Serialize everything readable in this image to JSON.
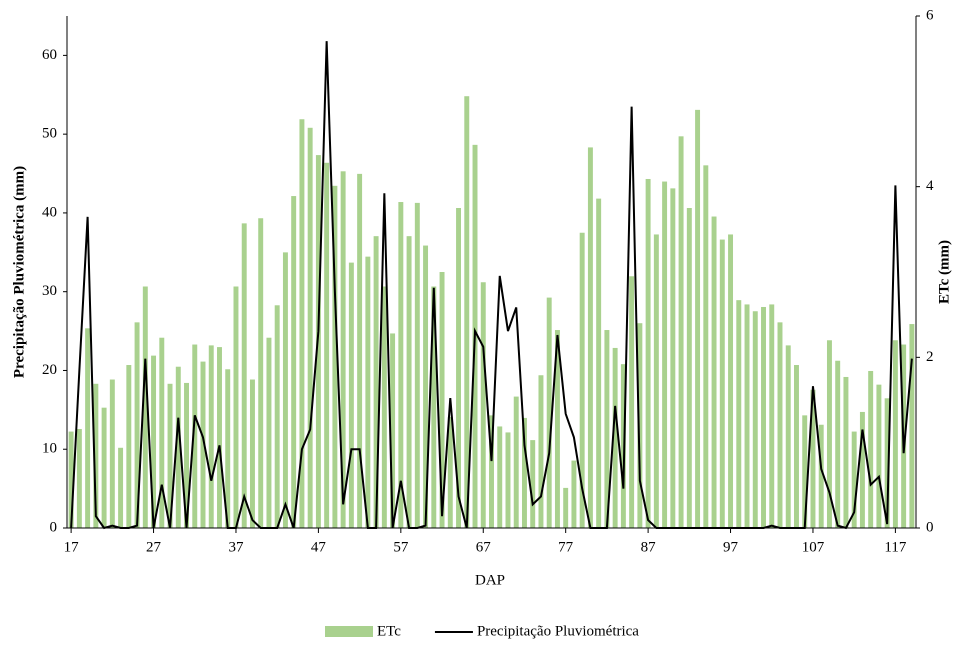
{
  "chart_data": {
    "type": "bar",
    "x_label": "DAP",
    "y_label": "Precipitação Pluviométrica (mm)",
    "y2_label": "ETc (mm)",
    "x": [
      17,
      18,
      19,
      20,
      21,
      22,
      23,
      24,
      25,
      26,
      27,
      28,
      29,
      30,
      31,
      32,
      33,
      34,
      35,
      36,
      37,
      38,
      39,
      40,
      41,
      42,
      43,
      44,
      45,
      46,
      47,
      48,
      49,
      50,
      51,
      52,
      53,
      54,
      55,
      56,
      57,
      58,
      59,
      60,
      61,
      62,
      63,
      64,
      65,
      66,
      67,
      68,
      69,
      70,
      71,
      72,
      73,
      74,
      75,
      76,
      77,
      78,
      79,
      80,
      81,
      82,
      83,
      84,
      85,
      86,
      87,
      88,
      89,
      90,
      91,
      92,
      93,
      94,
      95,
      96,
      97,
      98,
      99,
      100,
      101,
      102,
      103,
      104,
      105,
      106,
      107,
      108,
      109,
      110,
      111,
      112,
      113,
      114,
      115,
      116,
      117,
      118,
      119
    ],
    "xlim": [
      16.5,
      119.5
    ],
    "xticks": [
      17,
      27,
      37,
      47,
      57,
      67,
      77,
      87,
      97,
      107,
      117
    ],
    "ylim": [
      0,
      65
    ],
    "yticks": [
      0,
      10,
      20,
      30,
      40,
      50,
      60
    ],
    "y2lim": [
      0,
      6
    ],
    "y2ticks": [
      0,
      2,
      4,
      6
    ],
    "series": [
      {
        "name": "ETc",
        "type": "bar",
        "axis": "y2",
        "color": "#a9d18e",
        "values": [
          1.13,
          1.16,
          2.34,
          1.69,
          1.41,
          1.74,
          0.94,
          1.91,
          2.41,
          2.83,
          2.02,
          2.23,
          1.69,
          1.89,
          1.7,
          2.15,
          1.95,
          2.14,
          2.12,
          1.86,
          2.83,
          3.57,
          1.74,
          3.63,
          2.23,
          2.61,
          3.23,
          3.89,
          4.79,
          4.69,
          4.37,
          4.28,
          4.01,
          4.18,
          3.11,
          4.15,
          3.18,
          3.42,
          2.83,
          2.28,
          3.82,
          3.42,
          3.81,
          3.31,
          2.83,
          3.0,
          1.3,
          3.75,
          5.06,
          4.49,
          2.88,
          1.32,
          1.19,
          1.12,
          1.54,
          1.29,
          1.03,
          1.79,
          2.7,
          2.32,
          0.47,
          0.79,
          3.46,
          4.46,
          3.86,
          2.32,
          2.11,
          1.92,
          2.95,
          2.4,
          4.09,
          3.44,
          4.06,
          3.98,
          4.59,
          3.75,
          4.9,
          4.25,
          3.65,
          3.38,
          3.44,
          2.67,
          2.62,
          2.54,
          2.59,
          2.62,
          2.41,
          2.14,
          1.91,
          1.32,
          1.62,
          1.21,
          2.2,
          1.96,
          1.77,
          1.13,
          1.36,
          1.84,
          1.68,
          1.52,
          2.2,
          2.15,
          2.39
        ]
      },
      {
        "name": "Precipitação Pluviométrica",
        "type": "line",
        "axis": "y",
        "color": "#000000",
        "values": [
          0,
          20,
          39.5,
          1.5,
          0,
          0.3,
          0,
          0,
          0.3,
          21.5,
          0,
          5.5,
          0,
          14,
          0,
          14.3,
          11.5,
          6,
          10.5,
          0,
          0,
          4,
          1,
          0,
          0,
          0,
          3,
          0,
          10,
          12.5,
          25,
          61.8,
          30,
          3,
          10,
          10,
          0,
          0,
          42.5,
          0,
          6,
          0,
          0,
          0.3,
          30.5,
          1.5,
          16.5,
          4,
          0,
          25,
          23,
          8.5,
          32,
          25,
          28,
          10.5,
          3,
          4,
          9.5,
          24.5,
          14.5,
          11.5,
          5,
          0,
          0,
          0,
          15.5,
          5,
          53.5,
          6,
          1,
          0,
          0,
          0,
          0,
          0,
          0,
          0,
          0,
          0,
          0,
          0,
          0,
          0,
          0,
          0.3,
          0,
          0,
          0,
          0,
          18,
          7.5,
          4.5,
          0.3,
          0,
          2,
          12.5,
          5.5,
          6.5,
          0.5,
          43.5,
          9.5,
          21.5
        ]
      }
    ]
  }
}
